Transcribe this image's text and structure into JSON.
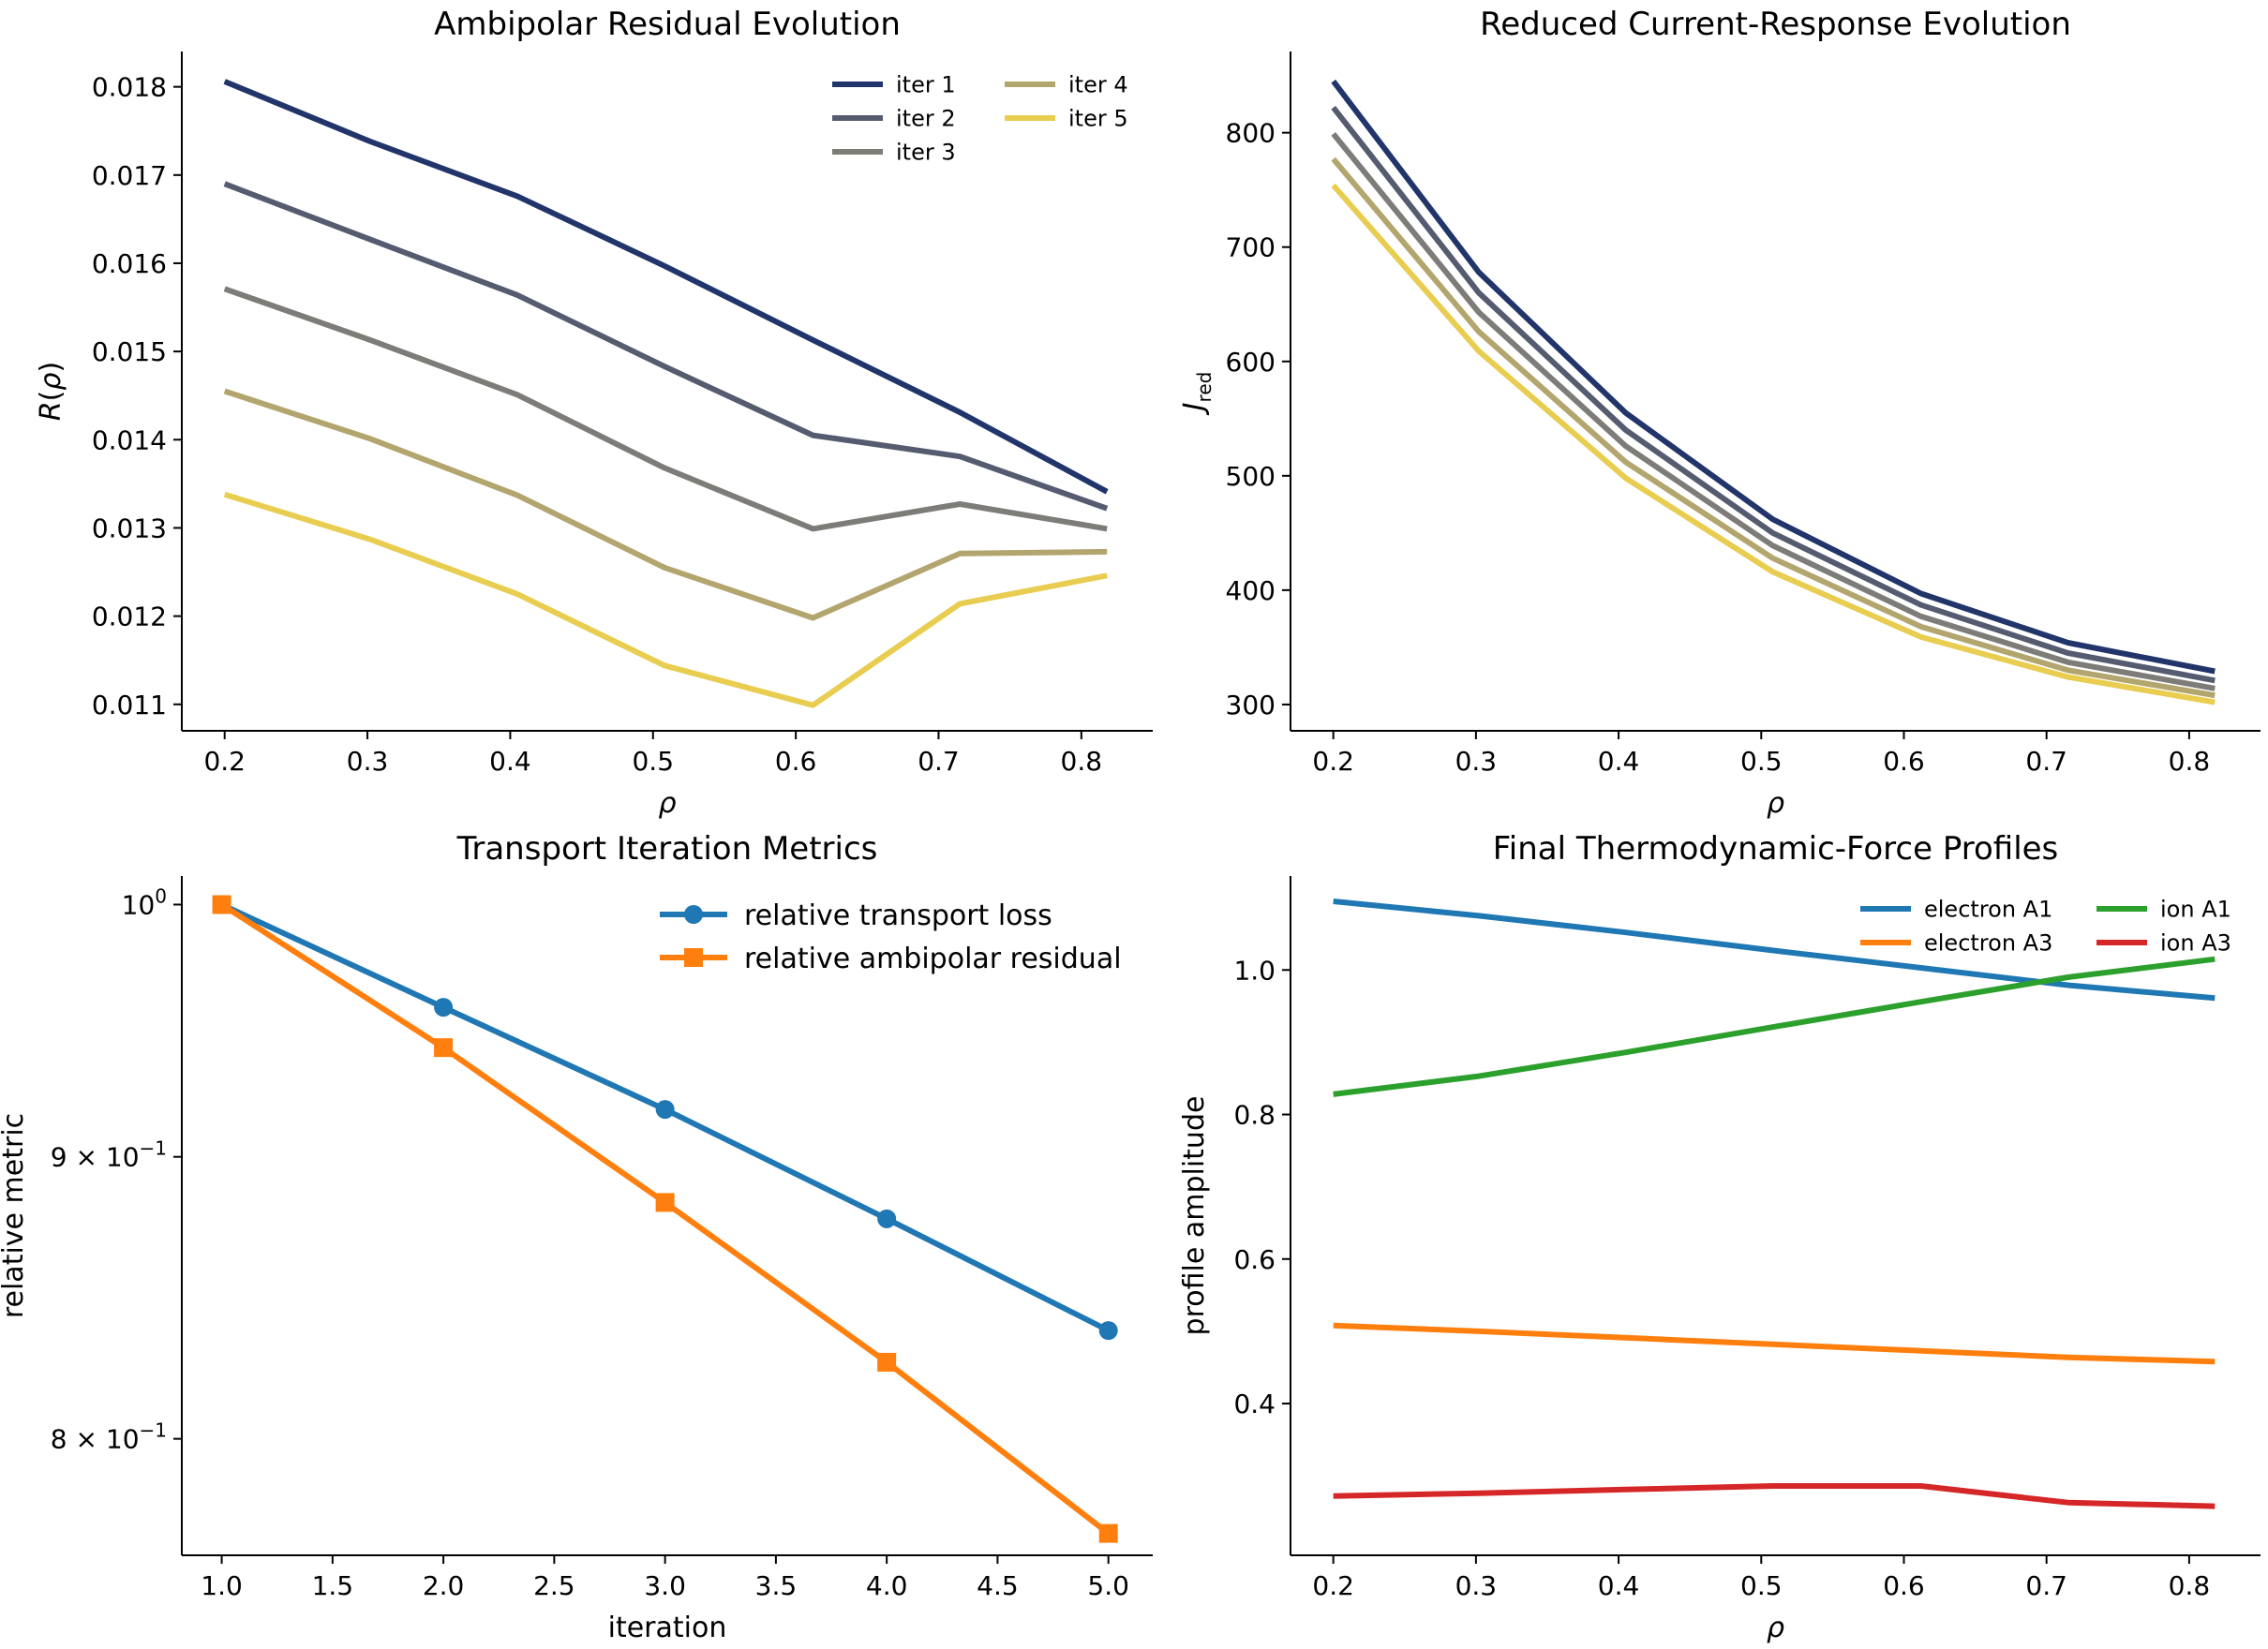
{
  "chart_data": [
    {
      "type": "line",
      "title": "Ambipolar Residual Evolution",
      "xlabel": "ρ",
      "ylabel": "R(ρ)",
      "x": [
        0.2,
        0.302,
        0.405,
        0.508,
        0.612,
        0.715,
        0.818
      ],
      "xticks": [
        "0.2",
        "0.3",
        "0.4",
        "0.5",
        "0.6",
        "0.7",
        "0.8"
      ],
      "yticks": [
        "0.011",
        "0.012",
        "0.013",
        "0.014",
        "0.015",
        "0.016",
        "0.017",
        "0.018"
      ],
      "xlim": [
        0.17,
        0.85
      ],
      "ylim": [
        0.0107,
        0.0184
      ],
      "legend_position": "top-right",
      "series": [
        {
          "name": "iter 1",
          "color": "#22356b",
          "values": [
            0.01806,
            0.01738,
            0.01676,
            0.01597,
            0.01513,
            0.01431,
            0.01341
          ]
        },
        {
          "name": "iter 2",
          "color": "#565c6f",
          "values": [
            0.0169,
            0.01627,
            0.01564,
            0.01483,
            0.01405,
            0.01381,
            0.01322
          ]
        },
        {
          "name": "iter 3",
          "color": "#7d7c78",
          "values": [
            0.01571,
            0.01513,
            0.01451,
            0.01368,
            0.01299,
            0.01327,
            0.01299
          ]
        },
        {
          "name": "iter 4",
          "color": "#b3a56e",
          "values": [
            0.01455,
            0.01401,
            0.01337,
            0.01255,
            0.01198,
            0.01271,
            0.01273
          ]
        },
        {
          "name": "iter 5",
          "color": "#e8cd50",
          "values": [
            0.01338,
            0.01287,
            0.01225,
            0.01144,
            0.01099,
            0.01214,
            0.01246
          ]
        }
      ]
    },
    {
      "type": "line",
      "title": "Reduced Current-Response Evolution",
      "xlabel": "ρ",
      "ylabel": "J",
      "ylabel_sub": "red",
      "x": [
        0.2,
        0.302,
        0.405,
        0.508,
        0.612,
        0.715,
        0.818
      ],
      "xticks": [
        "0.2",
        "0.3",
        "0.4",
        "0.5",
        "0.6",
        "0.7",
        "0.8"
      ],
      "yticks": [
        "300",
        "400",
        "500",
        "600",
        "700",
        "800"
      ],
      "xlim": [
        0.17,
        0.85
      ],
      "ylim": [
        277,
        871
      ],
      "series": [
        {
          "color": "#22356b",
          "values": [
            845,
            678,
            555,
            462,
            397,
            354,
            329
          ]
        },
        {
          "color": "#565c6f",
          "values": [
            822,
            660,
            540,
            450,
            387,
            345,
            321
          ]
        },
        {
          "color": "#7d7c78",
          "values": [
            799,
            643,
            526,
            439,
            377,
            337,
            314
          ]
        },
        {
          "color": "#b3a56e",
          "values": [
            777,
            626,
            512,
            428,
            368,
            330,
            308
          ]
        },
        {
          "color": "#e8cd50",
          "values": [
            754,
            609,
            498,
            416,
            359,
            324,
            302
          ]
        }
      ]
    },
    {
      "type": "line",
      "title": "Transport Iteration Metrics",
      "xlabel": "iteration",
      "ylabel": "relative metric",
      "yscale": "log",
      "x": [
        1.0,
        2.0,
        3.0,
        4.0,
        5.0
      ],
      "xticks": [
        "1.0",
        "1.5",
        "2.0",
        "2.5",
        "3.0",
        "3.5",
        "4.0",
        "4.5",
        "5.0"
      ],
      "xtick_values": [
        1.0,
        1.5,
        2.0,
        2.5,
        3.0,
        3.5,
        4.0,
        4.5,
        5.0
      ],
      "yticks": [
        {
          "value": 1.0,
          "mantissa": "",
          "base": "10",
          "exp": "0"
        },
        {
          "value": 0.9,
          "mantissa": "9 × ",
          "base": "10",
          "exp": "−1"
        },
        {
          "value": 0.8,
          "mantissa": "8 × ",
          "base": "10",
          "exp": "−1"
        }
      ],
      "xlim": [
        0.82,
        5.2
      ],
      "ylim": [
        0.762,
        1.012
      ],
      "legend_position": "top-right",
      "series": [
        {
          "name": "relative transport loss",
          "color": "#1f77b4",
          "marker": "circle",
          "values": [
            1.0,
            0.958,
            0.918,
            0.877,
            0.837
          ]
        },
        {
          "name": "relative ambipolar residual",
          "color": "#ff7f0e",
          "marker": "square",
          "values": [
            1.0,
            0.942,
            0.883,
            0.826,
            0.769
          ]
        }
      ]
    },
    {
      "type": "line",
      "title": "Final Thermodynamic-Force Profiles",
      "xlabel": "ρ",
      "ylabel": "profile amplitude",
      "x": [
        0.2,
        0.302,
        0.405,
        0.508,
        0.612,
        0.715,
        0.818
      ],
      "xticks": [
        "0.2",
        "0.3",
        "0.4",
        "0.5",
        "0.6",
        "0.7",
        "0.8"
      ],
      "yticks": [
        "0.4",
        "0.6",
        "0.8",
        "1.0"
      ],
      "xlim": [
        0.17,
        0.85
      ],
      "ylim": [
        0.19,
        1.13
      ],
      "legend_position": "top-right",
      "series": [
        {
          "name": "electron A1",
          "color": "#1f77b4",
          "values": [
            1.095,
            1.075,
            1.052,
            1.027,
            1.003,
            0.979,
            0.961
          ]
        },
        {
          "name": "electron A3",
          "color": "#ff7f0e",
          "values": [
            0.508,
            0.5,
            0.491,
            0.482,
            0.473,
            0.464,
            0.458
          ]
        },
        {
          "name": "ion A1",
          "color": "#2ca02c",
          "values": [
            0.828,
            0.853,
            0.886,
            0.921,
            0.956,
            0.99,
            1.015
          ]
        },
        {
          "name": "ion A3",
          "color": "#d62728",
          "values": [
            0.272,
            0.276,
            0.281,
            0.286,
            0.286,
            0.263,
            0.258
          ]
        }
      ]
    }
  ]
}
